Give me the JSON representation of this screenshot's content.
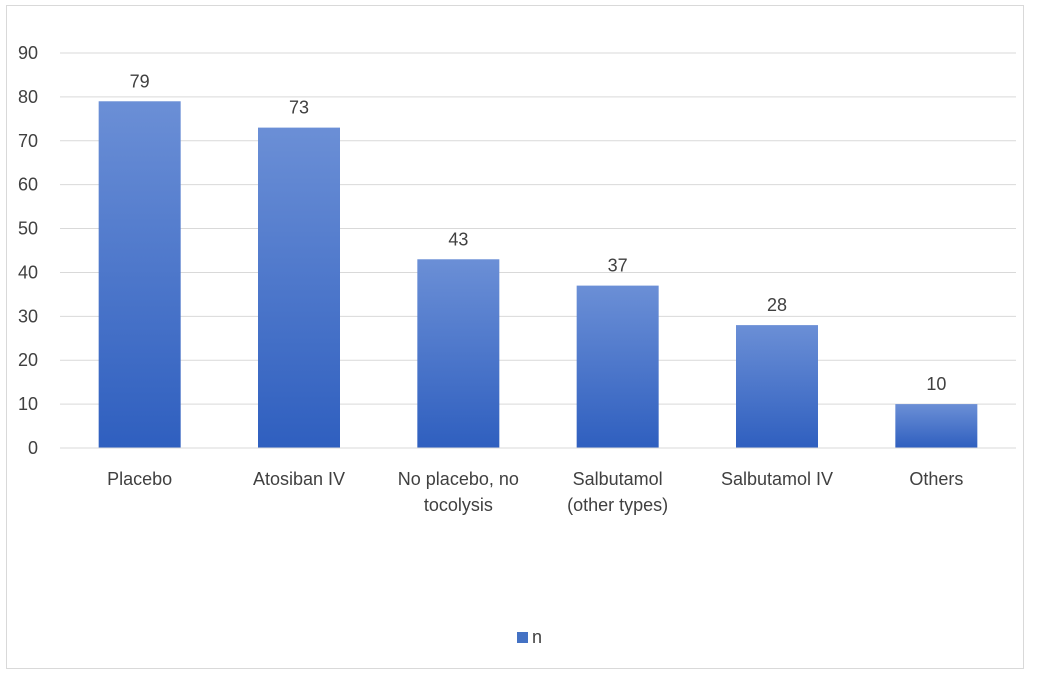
{
  "chart_data": {
    "type": "bar",
    "title": "",
    "xlabel": "",
    "ylabel": "",
    "categories": [
      [
        "Placebo"
      ],
      [
        "Atosiban IV"
      ],
      [
        "No placebo, no",
        "tocolysis"
      ],
      [
        "Salbutamol",
        "(other types)"
      ],
      [
        "Salbutamol IV"
      ],
      [
        "Others"
      ]
    ],
    "series": [
      {
        "name": "n",
        "values": [
          79,
          73,
          43,
          37,
          28,
          10
        ]
      }
    ],
    "ylim": [
      0,
      90
    ],
    "yticks": [
      0,
      10,
      20,
      30,
      40,
      50,
      60,
      70,
      80,
      90
    ],
    "grid": true,
    "legend": "bottom",
    "bar_color_top": "#6b8fd6",
    "bar_color_bottom": "#2f5fbf",
    "legend_color": "#4472c4",
    "data_labels": true
  }
}
